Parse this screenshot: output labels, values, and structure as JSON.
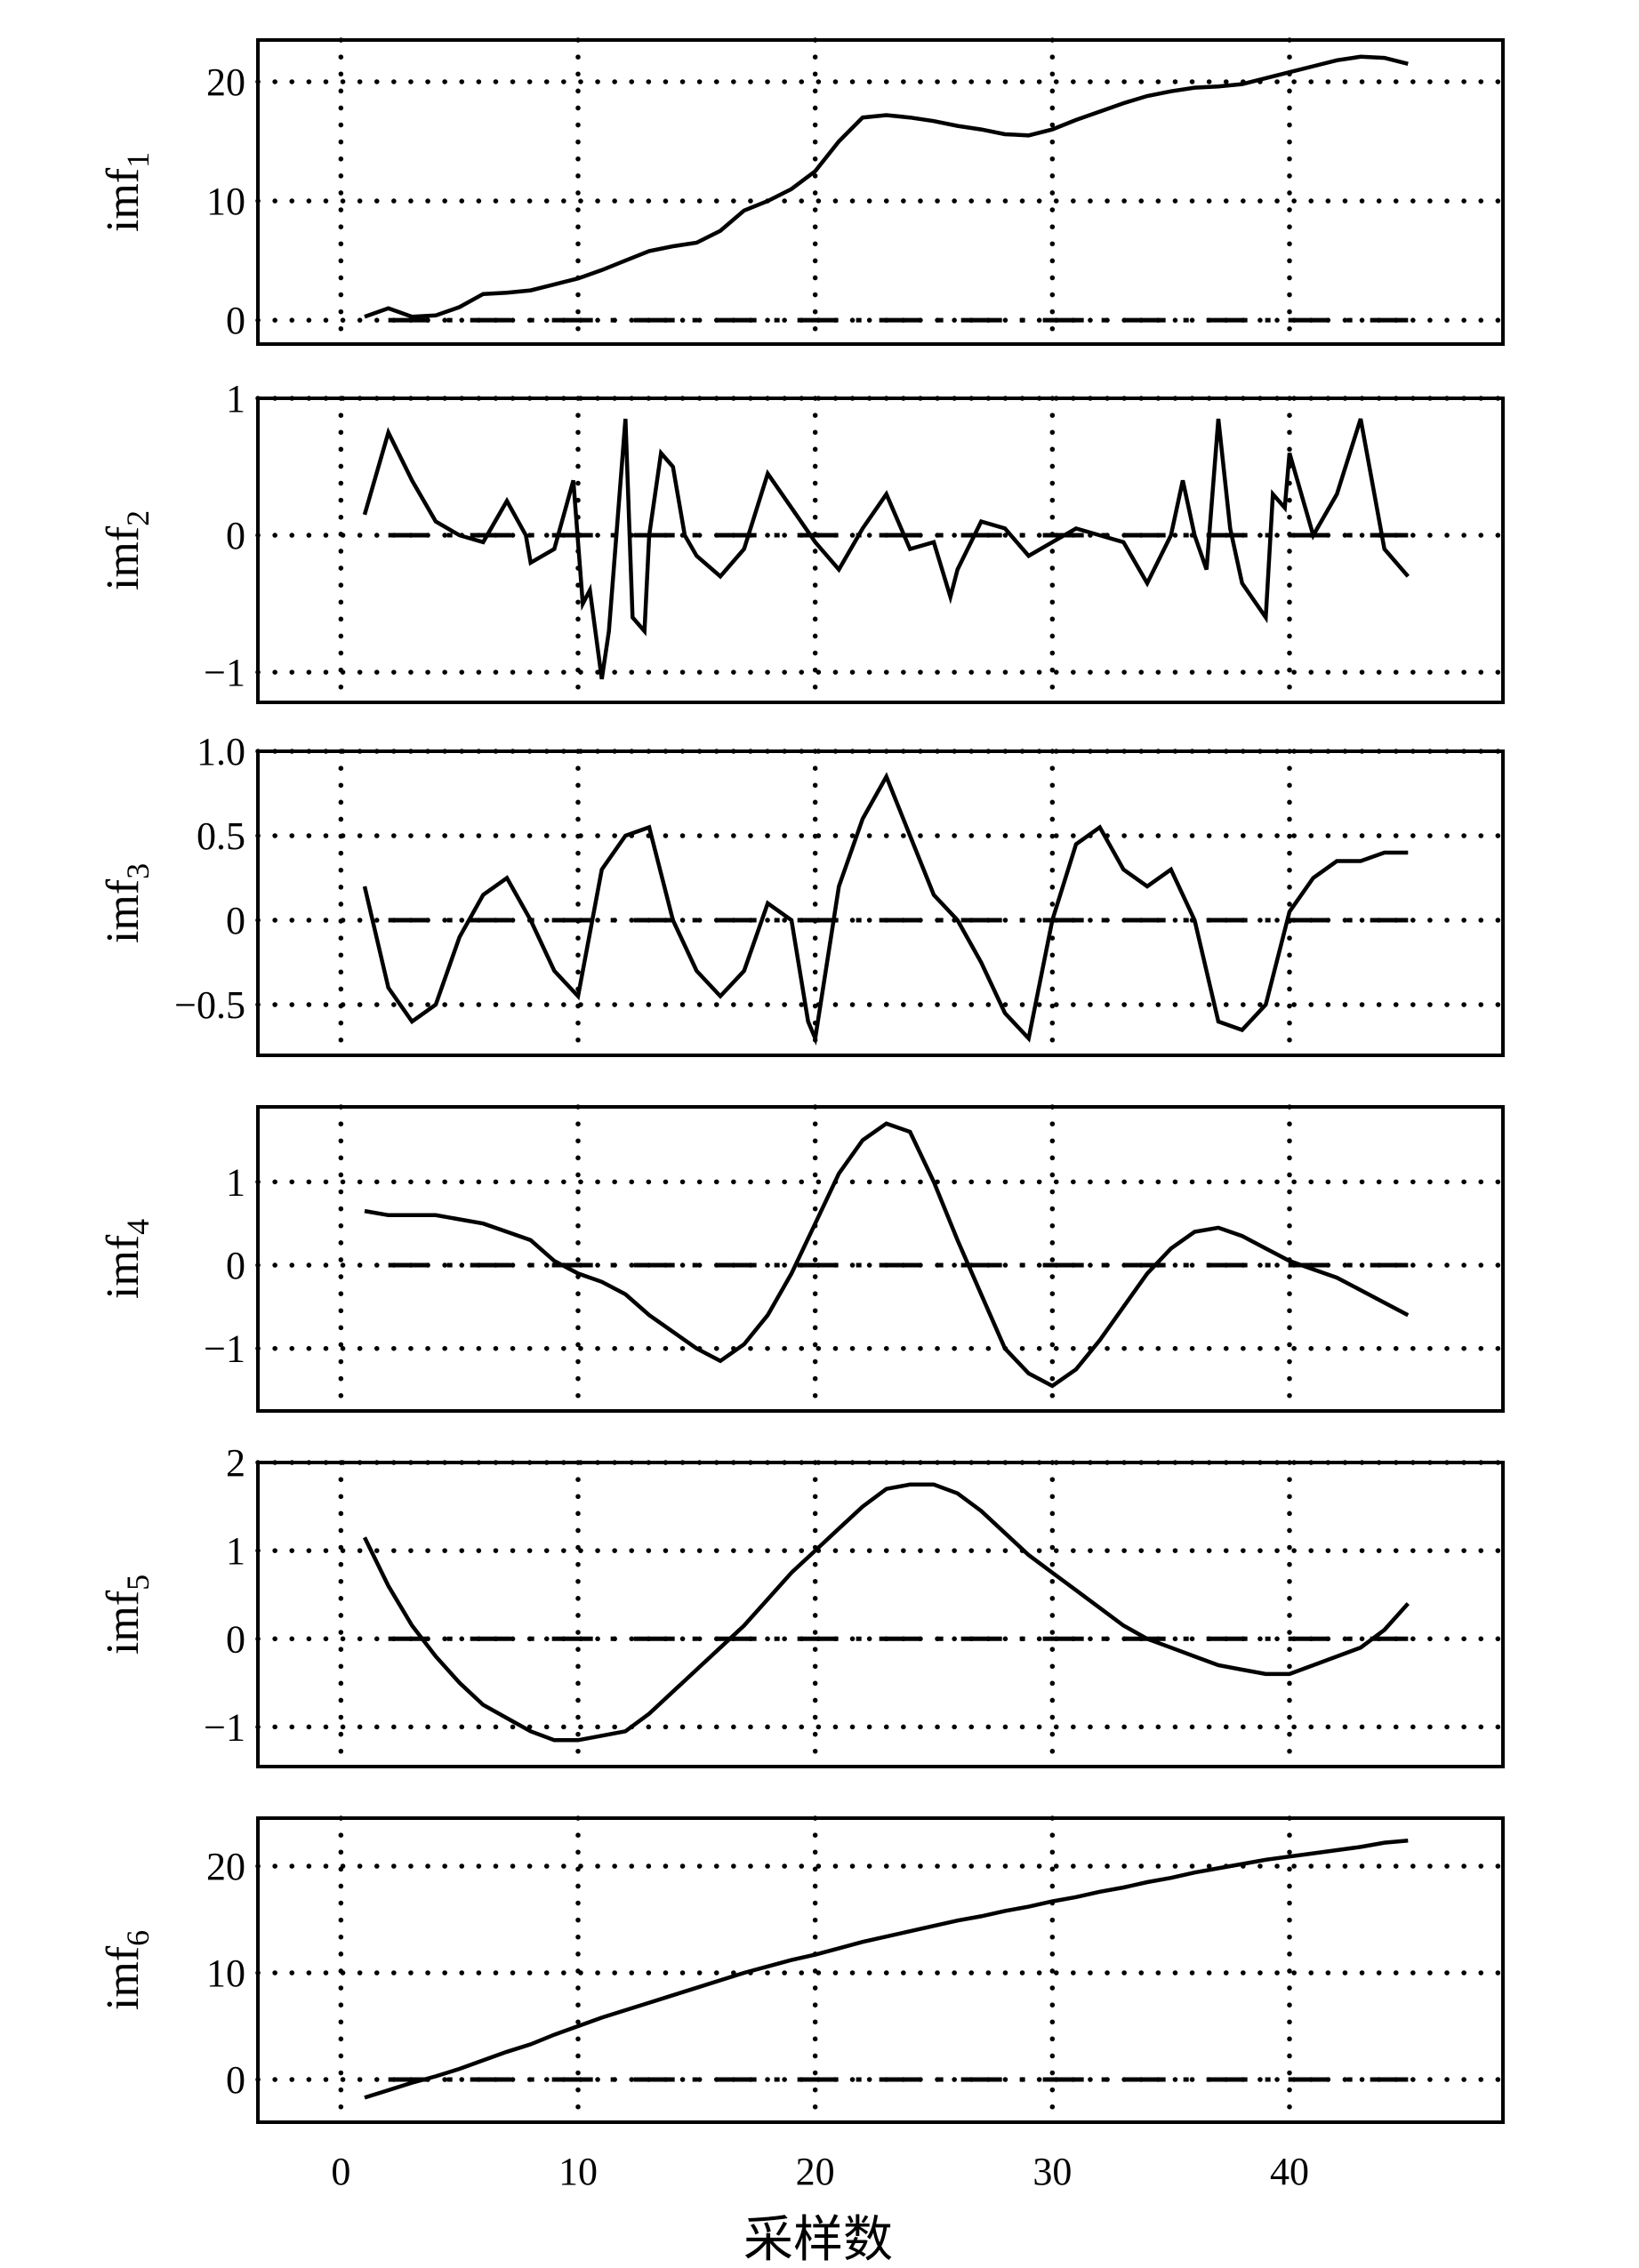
{
  "xlabel": "采样数",
  "chart_data": [
    {
      "type": "line",
      "ylabel": "imf",
      "subscript": "1",
      "xlim": [
        -3.5,
        49
      ],
      "ylim": [
        -2,
        23.5
      ],
      "xticks": [
        0,
        10,
        20,
        30,
        40
      ],
      "yticks": [
        0,
        10,
        20
      ],
      "ytick_labels": [
        "0",
        "10",
        "20"
      ],
      "zero_line": [
        2,
        45
      ],
      "series": [
        {
          "x": [
            1,
            2,
            3,
            4,
            5,
            6,
            7,
            8,
            9,
            10,
            11,
            12,
            13,
            14,
            15,
            16,
            17,
            18,
            19,
            20,
            21,
            22,
            23,
            24,
            25,
            26,
            27,
            28,
            29,
            30,
            31,
            32,
            33,
            34,
            35,
            36,
            37,
            38,
            39,
            40,
            41,
            42,
            43,
            44,
            45
          ],
          "y": [
            0.3,
            1.0,
            0.3,
            0.4,
            1.1,
            2.2,
            2.3,
            2.5,
            3.0,
            3.5,
            4.2,
            5.0,
            5.8,
            6.2,
            6.5,
            7.5,
            9.2,
            10.0,
            11.0,
            12.5,
            15.0,
            17.0,
            17.2,
            17.0,
            16.7,
            16.3,
            16.0,
            15.6,
            15.5,
            16.0,
            16.8,
            17.5,
            18.2,
            18.8,
            19.2,
            19.5,
            19.6,
            19.8,
            20.3,
            20.8,
            21.3,
            21.8,
            22.1,
            22.0,
            21.5
          ]
        }
      ]
    },
    {
      "type": "line",
      "ylabel": "imf",
      "subscript": "2",
      "xlim": [
        -3.5,
        49
      ],
      "ylim": [
        -1.22,
        1.0
      ],
      "xticks": [
        0,
        10,
        20,
        30,
        40
      ],
      "yticks": [
        -1,
        0,
        1
      ],
      "ytick_labels": [
        "−1",
        "0",
        "1"
      ],
      "zero_line": [
        2,
        45
      ],
      "series": [
        {
          "x": [
            1,
            2,
            3,
            4,
            5,
            6,
            7,
            7.8,
            8,
            9,
            9.8,
            10.2,
            10.5,
            11,
            11.3,
            12,
            12.3,
            12.8,
            13,
            13.5,
            14,
            14.5,
            15,
            16,
            17,
            18,
            19,
            20,
            21,
            22,
            23,
            24,
            25,
            25.7,
            26,
            27,
            28,
            29,
            30,
            31,
            32,
            33,
            34,
            35,
            35.5,
            36,
            36.5,
            37,
            37.5,
            38,
            39,
            39.3,
            39.8,
            40,
            41,
            42,
            43,
            44,
            45
          ],
          "y": [
            0.15,
            0.75,
            0.4,
            0.1,
            0.0,
            -0.05,
            0.25,
            0.0,
            -0.2,
            -0.1,
            0.4,
            -0.5,
            -0.4,
            -1.05,
            -0.7,
            0.85,
            -0.6,
            -0.7,
            0.0,
            0.6,
            0.5,
            0.0,
            -0.15,
            -0.3,
            -0.1,
            0.45,
            0.2,
            -0.05,
            -0.25,
            0.05,
            0.3,
            -0.1,
            -0.05,
            -0.45,
            -0.25,
            0.1,
            0.05,
            -0.15,
            -0.05,
            0.05,
            0.0,
            -0.05,
            -0.35,
            0.0,
            0.4,
            0.0,
            -0.25,
            0.85,
            0.05,
            -0.35,
            -0.6,
            0.3,
            0.2,
            0.6,
            0.0,
            0.3,
            0.85,
            -0.1,
            -0.3
          ]
        }
      ]
    },
    {
      "type": "line",
      "ylabel": "imf",
      "subscript": "3",
      "xlim": [
        -3.5,
        49
      ],
      "ylim": [
        -0.8,
        1.0
      ],
      "xticks": [
        0,
        10,
        20,
        30,
        40
      ],
      "yticks": [
        -0.5,
        0,
        0.5,
        1.0
      ],
      "ytick_labels": [
        "−0.5",
        "0",
        "0.5",
        "1.0"
      ],
      "zero_line": [
        2,
        45
      ],
      "series": [
        {
          "x": [
            1,
            2,
            3,
            4,
            5,
            6,
            7,
            8,
            9,
            10,
            11,
            12,
            13,
            14,
            15,
            16,
            17,
            18,
            19,
            19.7,
            20,
            21,
            22,
            23,
            24,
            25,
            26,
            27,
            28,
            29,
            30,
            31,
            32,
            33,
            34,
            35,
            36,
            37,
            38,
            39,
            40,
            41,
            42,
            43,
            44,
            45
          ],
          "y": [
            0.2,
            -0.4,
            -0.6,
            -0.5,
            -0.1,
            0.15,
            0.25,
            0.0,
            -0.3,
            -0.45,
            0.3,
            0.5,
            0.55,
            0.0,
            -0.3,
            -0.45,
            -0.3,
            0.1,
            0.0,
            -0.6,
            -0.7,
            0.2,
            0.6,
            0.85,
            0.5,
            0.15,
            0.0,
            -0.25,
            -0.55,
            -0.7,
            0.0,
            0.45,
            0.55,
            0.3,
            0.2,
            0.3,
            0.0,
            -0.6,
            -0.65,
            -0.5,
            0.05,
            0.25,
            0.35,
            0.35,
            0.4,
            0.4
          ]
        }
      ]
    },
    {
      "type": "line",
      "ylabel": "imf",
      "subscript": "4",
      "xlim": [
        -3.5,
        49
      ],
      "ylim": [
        -1.75,
        1.9
      ],
      "xticks": [
        0,
        10,
        20,
        30,
        40
      ],
      "yticks": [
        -1,
        0,
        1
      ],
      "ytick_labels": [
        "−1",
        "0",
        "1"
      ],
      "zero_line": [
        2,
        45
      ],
      "series": [
        {
          "x": [
            1,
            2,
            3,
            4,
            5,
            6,
            7,
            8,
            9,
            10,
            11,
            12,
            13,
            14,
            15,
            16,
            17,
            18,
            19,
            20,
            21,
            22,
            23,
            24,
            25,
            26,
            27,
            28,
            29,
            30,
            31,
            32,
            33,
            34,
            35,
            36,
            37,
            38,
            39,
            40,
            41,
            42,
            43,
            44,
            45
          ],
          "y": [
            0.65,
            0.6,
            0.6,
            0.6,
            0.55,
            0.5,
            0.4,
            0.3,
            0.05,
            -0.1,
            -0.2,
            -0.35,
            -0.6,
            -0.8,
            -1.0,
            -1.15,
            -0.95,
            -0.6,
            -0.1,
            0.5,
            1.1,
            1.5,
            1.7,
            1.6,
            1.0,
            0.3,
            -0.35,
            -1.0,
            -1.3,
            -1.45,
            -1.25,
            -0.9,
            -0.5,
            -0.1,
            0.2,
            0.4,
            0.45,
            0.35,
            0.2,
            0.05,
            -0.05,
            -0.15,
            -0.3,
            -0.45,
            -0.6
          ]
        }
      ]
    },
    {
      "type": "line",
      "ylabel": "imf",
      "subscript": "5",
      "xlim": [
        -3.5,
        49
      ],
      "ylim": [
        -1.45,
        2.0
      ],
      "xticks": [
        0,
        10,
        20,
        30,
        40
      ],
      "yticks": [
        -1,
        0,
        1,
        2
      ],
      "ytick_labels": [
        "−1",
        "0",
        "1",
        "2"
      ],
      "zero_line": [
        2,
        45
      ],
      "series": [
        {
          "x": [
            1,
            2,
            3,
            4,
            5,
            6,
            7,
            8,
            9,
            10,
            11,
            12,
            13,
            14,
            15,
            16,
            17,
            18,
            19,
            20,
            21,
            22,
            23,
            24,
            25,
            26,
            27,
            28,
            29,
            30,
            31,
            32,
            33,
            34,
            35,
            36,
            37,
            38,
            39,
            40,
            41,
            42,
            43,
            44,
            45
          ],
          "y": [
            1.15,
            0.6,
            0.15,
            -0.2,
            -0.5,
            -0.75,
            -0.9,
            -1.05,
            -1.15,
            -1.15,
            -1.1,
            -1.05,
            -0.85,
            -0.6,
            -0.35,
            -0.1,
            0.15,
            0.45,
            0.75,
            1.0,
            1.25,
            1.5,
            1.7,
            1.75,
            1.75,
            1.65,
            1.45,
            1.2,
            0.95,
            0.75,
            0.55,
            0.35,
            0.15,
            0.0,
            -0.1,
            -0.2,
            -0.3,
            -0.35,
            -0.4,
            -0.4,
            -0.3,
            -0.2,
            -0.1,
            0.1,
            0.4
          ]
        }
      ]
    },
    {
      "type": "line",
      "ylabel": "imf",
      "subscript": "6",
      "xlim": [
        -3.5,
        49
      ],
      "ylim": [
        -4,
        24.5
      ],
      "xticks": [
        0,
        10,
        20,
        30,
        40
      ],
      "xtick_labels": [
        "0",
        "10",
        "20",
        "30",
        "40"
      ],
      "yticks": [
        0,
        10,
        20
      ],
      "ytick_labels": [
        "0",
        "10",
        "20"
      ],
      "zero_line": [
        2,
        45
      ],
      "series": [
        {
          "x": [
            1,
            2,
            3,
            4,
            5,
            6,
            7,
            8,
            9,
            10,
            11,
            12,
            13,
            14,
            15,
            16,
            17,
            18,
            19,
            20,
            21,
            22,
            23,
            24,
            25,
            26,
            27,
            28,
            29,
            30,
            31,
            32,
            33,
            34,
            35,
            36,
            37,
            38,
            39,
            40,
            41,
            42,
            43,
            44,
            45
          ],
          "y": [
            -1.7,
            -1.0,
            -0.3,
            0.3,
            1.0,
            1.8,
            2.6,
            3.3,
            4.2,
            5.0,
            5.8,
            6.5,
            7.2,
            7.9,
            8.6,
            9.3,
            10.0,
            10.6,
            11.2,
            11.7,
            12.3,
            12.9,
            13.4,
            13.9,
            14.4,
            14.9,
            15.3,
            15.8,
            16.2,
            16.7,
            17.1,
            17.6,
            18.0,
            18.5,
            18.9,
            19.4,
            19.8,
            20.2,
            20.6,
            20.9,
            21.2,
            21.5,
            21.8,
            22.2,
            22.4
          ]
        }
      ]
    }
  ]
}
